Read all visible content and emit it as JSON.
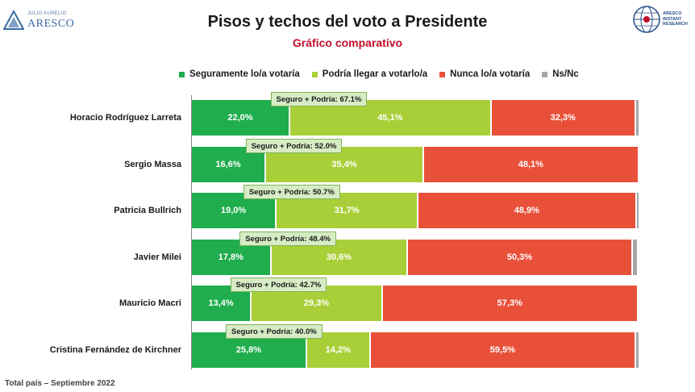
{
  "header": {
    "logo_left_small": "JULIO AURELIO",
    "logo_left_big": "ARESCO",
    "logo_right_lines": [
      "ARESCO",
      "INSTANT",
      "RESEARCH"
    ],
    "title": "Pisos y techos del voto a Presidente",
    "subtitle": "Gráfico comparativo"
  },
  "footnote": "Total país – Septiembre 2022",
  "colors": {
    "seguro": "#1fad4e",
    "podria": "#a9cf38",
    "nunca": "#e9503a",
    "nsnc": "#a6a6a6",
    "subtitle": "#c0102a"
  },
  "chart_data": {
    "type": "bar",
    "orientation": "horizontal",
    "stacked": true,
    "title": "Pisos y techos del voto a Presidente",
    "subtitle": "Gráfico comparativo",
    "legend_position": "top",
    "categories": [
      "Horacio Rodríguez Larreta",
      "Sergio Massa",
      "Patricia Bullrich",
      "Javier Milei",
      "Mauricio Macri",
      "Cristina Fernández de Kirchner"
    ],
    "series": [
      {
        "name": "Seguramente lo/a votaría",
        "color": "#1fad4e",
        "values": [
          22.0,
          16.6,
          19.0,
          17.8,
          13.4,
          25.8
        ],
        "labels": [
          "22,0%",
          "16,6%",
          "19,0%",
          "17,8%",
          "13,4%",
          "25,8%"
        ]
      },
      {
        "name": "Podría llegar a votarlo/a",
        "color": "#a9cf38",
        "values": [
          45.1,
          35.4,
          31.7,
          30.6,
          29.3,
          14.2
        ],
        "labels": [
          "45,1%",
          "35,4%",
          "31,7%",
          "30,6%",
          "29,3%",
          "14,2%"
        ]
      },
      {
        "name": "Nunca lo/a votaría",
        "color": "#e9503a",
        "values": [
          32.3,
          48.1,
          48.9,
          50.3,
          57.3,
          59.5
        ],
        "labels": [
          "32,3%",
          "48,1%",
          "48,9%",
          "50,3%",
          "57,3%",
          "59,5%"
        ]
      },
      {
        "name": "Ns/Nc",
        "color": "#a6a6a6",
        "values": [
          0.6,
          0.0,
          0.4,
          1.3,
          0.0,
          0.5
        ],
        "labels": [
          "",
          "",
          "",
          "",
          "",
          ""
        ]
      }
    ],
    "annotations": [
      "Seguro + Podría: 67.1%",
      "Seguro + Podría: 52.0%",
      "Seguro + Podría: 50.7%",
      "Seguro + Podría: 48.4%",
      "Seguro + Podría: 42.7%",
      "Seguro + Podría: 40.0%"
    ],
    "xlim": [
      0,
      100
    ],
    "grid": false
  }
}
